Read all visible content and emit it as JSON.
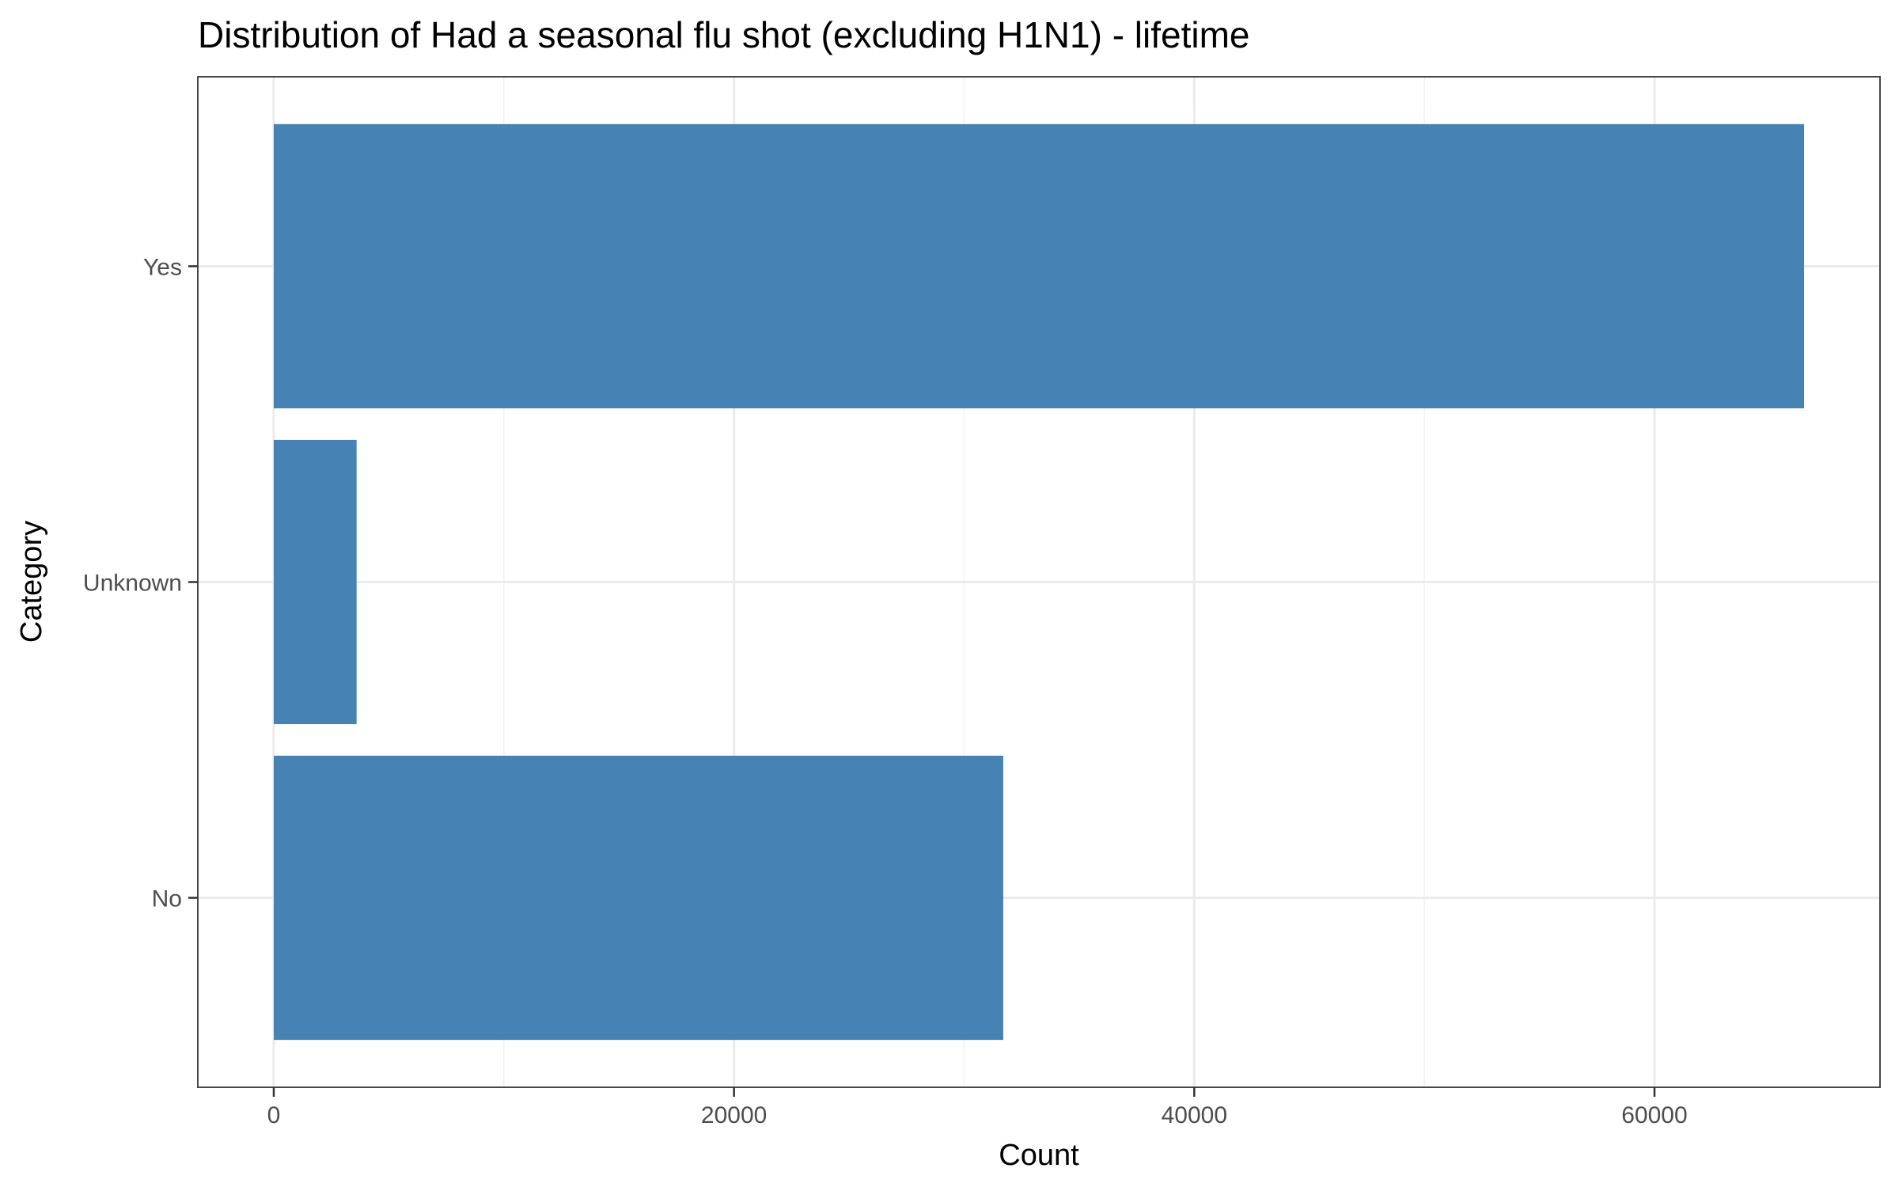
{
  "chart_data": {
    "type": "bar",
    "orientation": "horizontal",
    "title": "Distribution of Had a seasonal flu shot (excluding H1N1) - lifetime",
    "xlabel": "Count",
    "ylabel": "Category",
    "categories": [
      "No",
      "Unknown",
      "Yes"
    ],
    "values": [
      31700,
      3600,
      66500
    ],
    "xlim": [
      -3300,
      69800
    ],
    "x_ticks": [
      0,
      20000,
      40000,
      60000
    ],
    "x_minor_ticks": [
      10000,
      30000,
      50000
    ],
    "grid": true,
    "legend": "none",
    "bar_color": "#4682b4"
  }
}
